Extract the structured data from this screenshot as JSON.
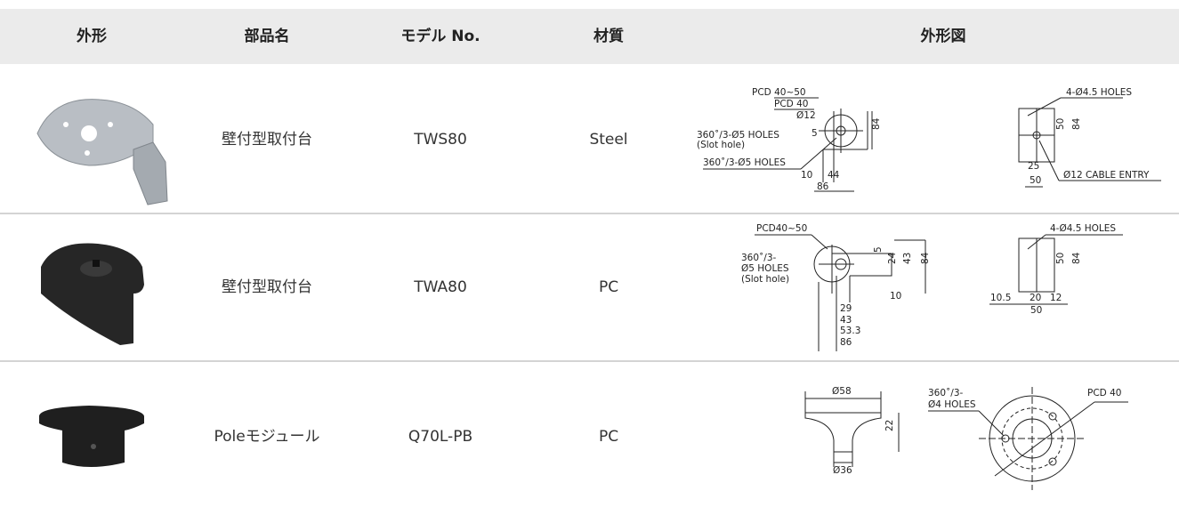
{
  "table": {
    "header": [
      "外形",
      "部品名",
      "モデル No.",
      "材質",
      "外形図"
    ],
    "rows": [
      {
        "part": "壁付型取付台",
        "model": "TWS80",
        "material": "Steel"
      },
      {
        "part": "壁付型取付台",
        "model": "TWA80",
        "material": "PC"
      },
      {
        "part": "Poleモジュール",
        "model": "Q70L-PB",
        "material": "PC"
      }
    ]
  },
  "drawings": [
    {
      "left": [
        "PCD 40~50",
        "PCD 40",
        "Ø12",
        "360˚/3-Ø5 HOLES",
        "(Slot hole)",
        "360˚/3-Ø5 HOLES",
        "5",
        "84",
        "10",
        "44",
        "86"
      ],
      "right": [
        "4-Ø4.5 HOLES",
        "50",
        "84",
        "25",
        "Ø12 CABLE ENTRY",
        "50"
      ]
    },
    {
      "left": [
        "PCD40~50",
        "360˚/3-",
        "Ø5 HOLES",
        "(Slot hole)",
        "5",
        "24",
        "43",
        "84",
        "10",
        "29",
        "43",
        "53.3",
        "86"
      ],
      "right": [
        "4-Ø4.5 HOLES",
        "50",
        "84",
        "10.5",
        "20",
        "12",
        "50"
      ]
    },
    {
      "left": [
        "Ø58",
        "22",
        "Ø36"
      ],
      "right": [
        "360˚/3-",
        "Ø4 HOLES",
        "PCD 40"
      ]
    }
  ]
}
